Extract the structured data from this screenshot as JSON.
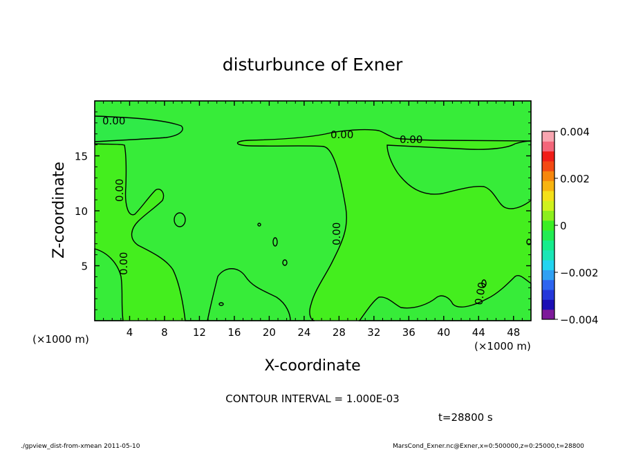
{
  "chart_data": {
    "type": "contour",
    "title": "disturbunce of Exner",
    "xlabel": "X-coordinate",
    "ylabel": "Z-coordinate",
    "x_unit": "(×1000 m)",
    "x_unit_right": "(×1000 m)",
    "xlim": [
      0,
      50
    ],
    "ylim": [
      0,
      20
    ],
    "x_ticks": [
      4,
      8,
      12,
      16,
      20,
      24,
      28,
      32,
      36,
      40,
      44,
      48
    ],
    "y_ticks": [
      5,
      10,
      15
    ],
    "contour_interval_text": "CONTOUR INTERVAL = 1.000E-03",
    "time_text": "t=28800 s",
    "contour_level_label": "0.00",
    "colorbar": {
      "range": [
        -0.004,
        0.004
      ],
      "tick_labels": [
        "0.004",
        "0.002",
        "0",
        "−0.002",
        "−0.004"
      ],
      "tick_values": [
        0.004,
        0.002,
        0,
        -0.002,
        -0.004
      ],
      "colors": [
        "#7d1a9a",
        "#1b0fb4",
        "#2437d9",
        "#2d64f0",
        "#2fa0f3",
        "#22d4f0",
        "#1ae6b6",
        "#16ec8c",
        "#22ec53",
        "#3bef24",
        "#8cef1d",
        "#cff11d",
        "#f4e01a",
        "#f7b410",
        "#f6870d",
        "#f34913",
        "#f01d18",
        "#f3667a",
        "#f8a5b0"
      ]
    },
    "field_colors": {
      "positive": "#44ee1e",
      "negative": "#27e95c"
    }
  },
  "footer": {
    "left": "./gpview_dist-from-xmean  2011-05-10",
    "right": "MarsCond_Exner.nc@Exner,x=0:500000,z=0:25000,t=28800"
  }
}
